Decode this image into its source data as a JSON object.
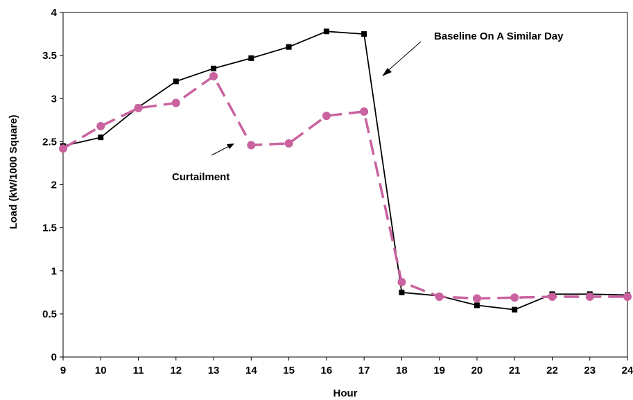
{
  "chart_data": {
    "type": "line",
    "title": "",
    "xlabel": "Hour",
    "ylabel": "Load (kW/1000 Square)",
    "x": [
      9,
      10,
      11,
      12,
      13,
      14,
      15,
      16,
      17,
      18,
      19,
      20,
      21,
      22,
      23,
      24
    ],
    "xlim": [
      9,
      24
    ],
    "ylim": [
      0,
      4
    ],
    "x_ticks": [
      "9",
      "10",
      "11",
      "12",
      "13",
      "14",
      "15",
      "16",
      "17",
      "18",
      "19",
      "20",
      "21",
      "22",
      "23",
      "24"
    ],
    "y_ticks": [
      "0",
      "0.5",
      "1",
      "1.5",
      "2",
      "2.5",
      "3",
      "3.5",
      "4"
    ],
    "grid": false,
    "series": [
      {
        "name": "Baseline On A Similar Day",
        "color": "#000000",
        "style": "solid",
        "marker": "square",
        "values": [
          2.45,
          2.55,
          2.9,
          3.2,
          3.35,
          3.47,
          3.6,
          3.78,
          3.75,
          0.75,
          0.71,
          0.6,
          0.55,
          0.73,
          0.73,
          0.72
        ]
      },
      {
        "name": "Curtailment",
        "color": "#c9629f",
        "style": "dashed",
        "marker": "circle",
        "values": [
          2.42,
          2.68,
          2.89,
          2.95,
          3.26,
          2.46,
          2.48,
          2.8,
          2.85,
          0.87,
          0.7,
          0.68,
          0.69,
          0.7,
          0.7,
          0.7
        ]
      }
    ],
    "annotations": [
      {
        "text": "Baseline On A Similar Day",
        "series": 0
      },
      {
        "text": "Curtailment",
        "series": 1
      }
    ]
  }
}
